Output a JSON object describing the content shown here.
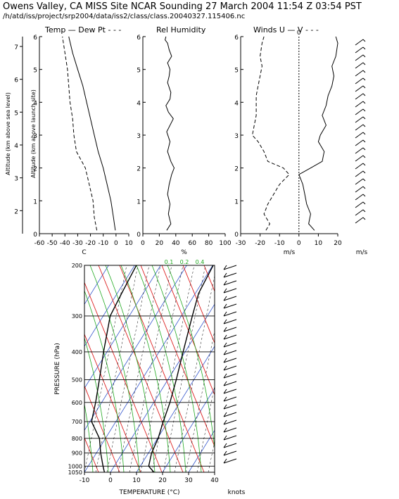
{
  "title": "Owens Valley, CA MISS Site NCAR Sounding 27 March 2004 11:54 Z 03:54 PST",
  "subtitle": "/h/atd/iss/project/srp2004/data/iss2/class/class.20040327.115406.nc",
  "panel_titles": {
    "temp": "Temp — Dew Pt - - -",
    "rh": "Rel Humidity",
    "winds": "Winds U — V - - -"
  },
  "chart_data": [
    {
      "type": "line",
      "panel": "temperature",
      "xlabel": "C",
      "ylabel": "Altitude (km above launch site)",
      "ylabel_outer": "Altitude (km above sea level)",
      "xlim": [
        -60,
        10
      ],
      "ylim": [
        0,
        6
      ],
      "xticks": [
        -60,
        -50,
        -40,
        -30,
        -20,
        -10,
        0,
        10
      ],
      "yticks": [
        0,
        1,
        2,
        3,
        4,
        5,
        6
      ],
      "outer_yticks": [
        2,
        3,
        4,
        5,
        6,
        7
      ],
      "series": [
        {
          "name": "Temp",
          "style": "solid",
          "x": [
            -0.5,
            -2,
            -4,
            -7,
            -10,
            -14,
            -17,
            -20,
            -23,
            -26,
            -30,
            -34,
            -37
          ],
          "y": [
            0.1,
            0.5,
            1.0,
            1.5,
            2.0,
            2.5,
            3.0,
            3.5,
            4.0,
            4.5,
            5.0,
            5.5,
            6.0
          ]
        },
        {
          "name": "Dew Pt",
          "style": "dashed",
          "x": [
            -15,
            -17,
            -18,
            -21,
            -24,
            -31,
            -33,
            -34,
            -36,
            -37,
            -38,
            -40,
            -42
          ],
          "y": [
            0.1,
            0.5,
            1.0,
            1.5,
            2.0,
            2.5,
            3.0,
            3.5,
            4.0,
            4.5,
            5.0,
            5.5,
            6.0
          ]
        }
      ]
    },
    {
      "type": "line",
      "panel": "relative-humidity",
      "xlabel": "%",
      "xlim": [
        0,
        100
      ],
      "ylim": [
        0,
        6
      ],
      "xticks": [
        0,
        20,
        40,
        60,
        80,
        100
      ],
      "yticks": [
        0,
        1,
        2,
        3,
        4,
        5,
        6
      ],
      "series": [
        {
          "name": "Rel Humidity",
          "style": "solid",
          "x": [
            29,
            34,
            31,
            33,
            30,
            32,
            35,
            38,
            34,
            30,
            33,
            29,
            37,
            31,
            28,
            33,
            34,
            30,
            32,
            33,
            30,
            35,
            32,
            30,
            27,
            28
          ],
          "y": [
            0.1,
            0.3,
            0.6,
            0.9,
            1.2,
            1.5,
            1.8,
            2.0,
            2.2,
            2.5,
            2.8,
            3.1,
            3.5,
            3.7,
            3.9,
            4.1,
            4.3,
            4.6,
            4.8,
            5.0,
            5.2,
            5.4,
            5.6,
            5.8,
            5.9,
            6.0
          ]
        }
      ]
    },
    {
      "type": "line",
      "panel": "winds",
      "xlabel": "m/s",
      "xlim": [
        -30,
        20
      ],
      "ylim": [
        0,
        6
      ],
      "xticks": [
        -30,
        -20,
        -10,
        0,
        10,
        20
      ],
      "yticks": [
        0,
        1,
        2,
        3,
        4,
        5,
        6
      ],
      "zero_line_label": "0",
      "barb_axis_label": "m/s",
      "series": [
        {
          "name": "U",
          "style": "solid",
          "x": [
            8,
            5,
            6,
            4,
            3,
            2,
            0,
            6,
            12,
            13,
            10,
            11,
            14,
            12,
            14,
            15,
            17,
            18,
            17,
            19,
            20,
            19
          ],
          "y": [
            0.1,
            0.3,
            0.6,
            0.9,
            1.2,
            1.5,
            1.8,
            2.0,
            2.2,
            2.5,
            2.8,
            3.0,
            3.3,
            3.6,
            3.9,
            4.2,
            4.5,
            4.8,
            5.1,
            5.4,
            5.8,
            6.0
          ]
        },
        {
          "name": "V",
          "style": "dashed",
          "x": [
            -17,
            -15,
            -18,
            -16,
            -13,
            -10,
            -5,
            -8,
            -16,
            -18,
            -21,
            -24,
            -23,
            -22,
            -22,
            -22,
            -21,
            -20,
            -19,
            -20,
            -19,
            -18
          ],
          "y": [
            0.1,
            0.3,
            0.6,
            0.9,
            1.2,
            1.5,
            1.8,
            2.0,
            2.2,
            2.5,
            2.8,
            3.0,
            3.3,
            3.6,
            3.9,
            4.2,
            4.5,
            4.8,
            5.1,
            5.4,
            5.8,
            6.0
          ]
        }
      ]
    },
    {
      "type": "line",
      "panel": "skew-t",
      "xlabel": "TEMPERATURE (°C)",
      "ylabel": "PRESSURE (hPa)",
      "xlim": [
        -10,
        40
      ],
      "xticks": [
        -10,
        0,
        10,
        20,
        30,
        40
      ],
      "pressure_levels": [
        200,
        300,
        400,
        500,
        600,
        700,
        800,
        900,
        1000,
        1050
      ],
      "mixing_ratio_labels": [
        "0.1",
        "0.2",
        "0.4"
      ],
      "barb_axis_label": "knots",
      "series": [
        {
          "name": "Temperature",
          "style": "solid",
          "x": [
            0.5,
            -3,
            -5,
            -6,
            -8,
            -10,
            -13,
            -17,
            -22,
            -25,
            -25
          ],
          "y": [
            1050,
            1000,
            900,
            800,
            700,
            600,
            500,
            400,
            300,
            250,
            200
          ]
        },
        {
          "name": "Dew Point",
          "style": "solid",
          "x": [
            -18,
            -20,
            -24,
            -28,
            -35,
            -38,
            -42,
            -47,
            -53,
            -54,
            -55
          ],
          "y": [
            1050,
            1000,
            900,
            800,
            700,
            600,
            500,
            400,
            300,
            250,
            200
          ]
        }
      ]
    }
  ]
}
